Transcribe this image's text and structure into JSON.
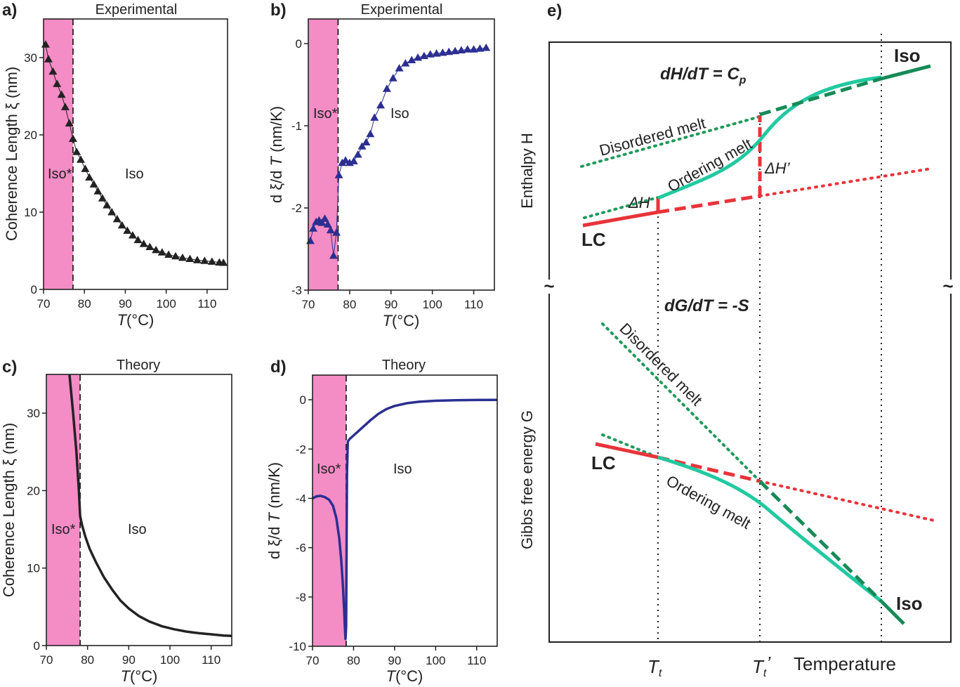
{
  "colors": {
    "shade": "#f48cc6",
    "exp_a": "#222222",
    "exp_b": "#2b2f91",
    "theory_c": "#222222",
    "theory_d": "#2b2f91",
    "red": "#e8333a",
    "green": "#1f9a5a",
    "teal": "#22c9a0",
    "darkgreen": "#178a57"
  },
  "chart_data": [
    {
      "id": "a",
      "panel_label": "a)",
      "type": "line",
      "markers": "triangle",
      "title": "Experimental",
      "xlabel_pre": "T",
      "xlabel_post": "(°C)",
      "ylabel": "Coherence Length ξ (nm)",
      "xlim": [
        70,
        115
      ],
      "ylim": [
        0,
        35
      ],
      "xticks": [
        70,
        80,
        90,
        100,
        110
      ],
      "yticks": [
        0,
        10,
        20,
        30
      ],
      "shade_range": [
        70,
        77.2
      ],
      "region_left": "Iso*",
      "region_right": "Iso",
      "x": [
        70.5,
        71.2,
        72.3,
        73.3,
        74.4,
        75.3,
        76.3,
        77.2,
        78.1,
        79.1,
        80.2,
        81.2,
        82.3,
        83.3,
        84.4,
        85.5,
        86.7,
        88.0,
        89.2,
        90.5,
        91.8,
        93.1,
        94.5,
        96.0,
        97.5,
        99.0,
        100.6,
        102.3,
        104.0,
        105.8,
        107.6,
        109.4,
        111.2,
        113.0,
        114.0
      ],
      "y": [
        31.7,
        29.8,
        28.2,
        26.6,
        25.2,
        23.6,
        21.5,
        19.5,
        17.8,
        16.8,
        15.6,
        14.5,
        13.6,
        12.7,
        11.8,
        10.9,
        10.0,
        9.1,
        8.3,
        7.6,
        7.0,
        6.4,
        5.9,
        5.5,
        5.1,
        4.8,
        4.5,
        4.3,
        4.1,
        3.95,
        3.8,
        3.7,
        3.6,
        3.5,
        3.45
      ]
    },
    {
      "id": "b",
      "panel_label": "b)",
      "type": "line",
      "markers": "triangle",
      "title": "Experimental",
      "xlabel_pre": "T",
      "xlabel_post": "(°C)",
      "ylabel_pre": "d ξ/d ",
      "ylabel_it": "T",
      "ylabel_post": " (nm/K)",
      "xlim": [
        70,
        115
      ],
      "ylim": [
        -3,
        0.3
      ],
      "xticks": [
        70,
        80,
        90,
        100,
        110
      ],
      "yticks": [
        -3,
        -2,
        -1,
        0
      ],
      "shade_range": [
        70,
        77.2
      ],
      "region_left": "Iso*",
      "region_right": "Iso",
      "x": [
        70.5,
        71.2,
        71.9,
        72.6,
        73.3,
        74.0,
        74.7,
        75.4,
        76.1,
        76.8,
        77.4,
        78.2,
        79.0,
        80.0,
        81.0,
        82.0,
        83.0,
        84.0,
        85.0,
        86.0,
        87.5,
        89.0,
        90.5,
        92.0,
        93.5,
        95.0,
        96.5,
        98.0,
        99.5,
        101.0,
        102.5,
        104.0,
        105.5,
        107.0,
        108.5,
        110.0,
        111.5,
        113.0
      ],
      "y": [
        -2.4,
        -2.25,
        -2.17,
        -2.15,
        -2.18,
        -2.13,
        -2.2,
        -2.27,
        -2.58,
        -2.3,
        -1.6,
        -1.45,
        -1.42,
        -1.45,
        -1.43,
        -1.35,
        -1.25,
        -1.2,
        -1.1,
        -0.9,
        -0.75,
        -0.55,
        -0.42,
        -0.3,
        -0.24,
        -0.2,
        -0.17,
        -0.15,
        -0.13,
        -0.12,
        -0.11,
        -0.1,
        -0.09,
        -0.08,
        -0.07,
        -0.07,
        -0.06,
        -0.05
      ]
    },
    {
      "id": "c",
      "panel_label": "c)",
      "type": "line",
      "title": "Theory",
      "xlabel_pre": "T",
      "xlabel_post": "(°C)",
      "ylabel": "Coherence Length ξ (nm)",
      "xlim": [
        70,
        115
      ],
      "ylim": [
        0,
        35
      ],
      "xticks": [
        70,
        80,
        90,
        100,
        110
      ],
      "yticks": [
        0,
        10,
        20,
        30
      ],
      "shade_range": [
        70,
        78.2
      ],
      "region_left": "Iso*",
      "region_right": "Iso",
      "x": [
        75.6,
        76.5,
        77.3,
        77.9,
        78.2,
        78.7,
        79.5,
        80.5,
        82.0,
        84.0,
        86.0,
        88.0,
        90.0,
        92.5,
        95.0,
        98.0,
        101.0,
        104.0,
        107.0,
        110.0,
        113.0,
        115.0
      ],
      "y": [
        35.0,
        30.0,
        25.0,
        20.0,
        16.7,
        15.5,
        14.0,
        12.5,
        10.8,
        8.8,
        7.2,
        5.8,
        4.8,
        3.8,
        3.1,
        2.5,
        2.1,
        1.8,
        1.6,
        1.45,
        1.3,
        1.25
      ]
    },
    {
      "id": "d",
      "panel_label": "d)",
      "type": "line",
      "title": "Theory",
      "xlabel_pre": "T",
      "xlabel_post": "(°C)",
      "ylabel_pre": "d ξ/d ",
      "ylabel_it": "T",
      "ylabel_post": " (nm/K)",
      "xlim": [
        70,
        115
      ],
      "ylim": [
        -10,
        1
      ],
      "xticks": [
        70,
        80,
        90,
        100,
        110
      ],
      "yticks": [
        -10,
        -8,
        -6,
        -4,
        -2,
        0
      ],
      "shade_range": [
        70,
        78.2
      ],
      "region_left": "Iso*",
      "region_right": "Iso",
      "x": [
        70.0,
        71.0,
        72.0,
        73.0,
        74.0,
        75.0,
        75.8,
        76.5,
        77.0,
        77.4,
        77.7,
        77.9,
        78.05,
        78.2,
        78.4,
        78.6,
        79.0,
        80.0,
        82.0,
        84.0,
        86.0,
        88.0,
        90.0,
        93.0,
        96.0,
        100.0,
        105.0,
        110.0,
        115.0
      ],
      "y": [
        -4.0,
        -3.92,
        -3.9,
        -3.95,
        -4.05,
        -4.3,
        -4.8,
        -5.6,
        -6.5,
        -7.5,
        -8.5,
        -9.3,
        -9.7,
        -9.2,
        -3.0,
        -1.7,
        -1.6,
        -1.45,
        -1.15,
        -0.85,
        -0.58,
        -0.38,
        -0.25,
        -0.14,
        -0.08,
        -0.04,
        -0.02,
        -0.01,
        -0.005
      ]
    },
    {
      "id": "e",
      "panel_label": "e)",
      "type": "diagram",
      "ylabel_top": "Enthalpy H",
      "ylabel_bottom": "Gibbs free energy G",
      "xlabel": "Temperature",
      "tick_Tt_base": "T",
      "tick_Tt_sub": "t",
      "tick_Tt2_base": "T",
      "tick_Tt2_sub": "t",
      "tick_Tt2_prime": "’",
      "eq_top": "dH/dT = C",
      "eq_top_sub": "p",
      "eq_bottom": "dG/dT = -S",
      "lc_label": "LC",
      "iso_label": "Iso",
      "disordered_melt": "Disordered melt",
      "ordering_melt": "Ordering melt",
      "dH_label": "ΔH",
      "dH2_label": "ΔH’",
      "break_symbol": "~"
    }
  ]
}
